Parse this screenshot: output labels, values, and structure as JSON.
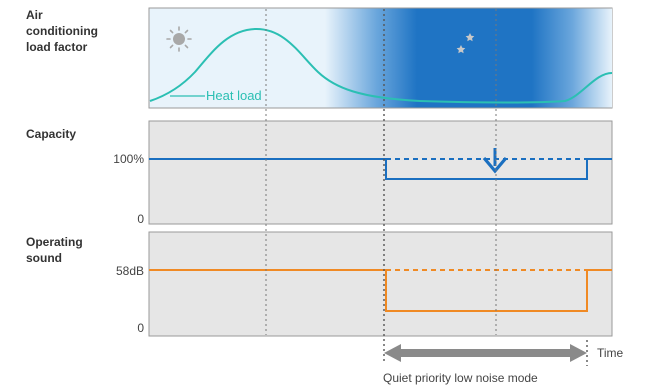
{
  "panels": {
    "load": {
      "label": "Air\nconditioning\nload factor",
      "curve_label": "Heat load",
      "day_icon": "sun-icon",
      "night_icon": "moon-and-stars-icon"
    },
    "capacity": {
      "label": "Capacity",
      "tick_high": "100%",
      "tick_low": "0",
      "arrow_icon": "down-arrow-icon"
    },
    "sound": {
      "label": "Operating\nsound",
      "tick_high": "58dB",
      "tick_low": "0"
    }
  },
  "time_axis": {
    "label": "Time",
    "mode_label": "Quiet priority low noise mode"
  },
  "colors": {
    "heat_load": "#2bbfb3",
    "capacity": "#1a6fc0",
    "sound": "#f08a24",
    "night": "#1f74c4",
    "day_bg": "#e8f3fb",
    "panel_bg": "#e6e6e6"
  }
}
